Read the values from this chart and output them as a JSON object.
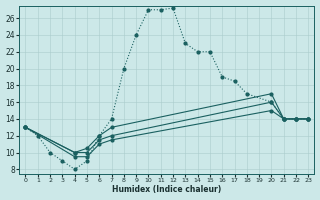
{
  "xlabel": "Humidex (Indice chaleur)",
  "bg_color": "#cce8e8",
  "line_color": "#1a6060",
  "xlim": [
    -0.5,
    23.5
  ],
  "ylim": [
    7.5,
    27.5
  ],
  "xticks": [
    0,
    1,
    2,
    3,
    4,
    5,
    6,
    7,
    8,
    9,
    10,
    11,
    12,
    13,
    14,
    15,
    16,
    17,
    18,
    19,
    20,
    21,
    22,
    23
  ],
  "yticks": [
    8,
    10,
    12,
    14,
    16,
    18,
    20,
    22,
    24,
    26
  ],
  "curve1_x": [
    0,
    1,
    2,
    3,
    4,
    5,
    6,
    7,
    8,
    9,
    10,
    11,
    12,
    13,
    14,
    15,
    16,
    17,
    18,
    20,
    21,
    22,
    23
  ],
  "curve1_y": [
    13,
    12,
    10,
    9,
    8,
    9,
    12,
    14,
    20,
    24,
    27,
    27,
    27.2,
    23,
    22,
    22,
    19,
    18.5,
    17,
    16,
    14,
    14,
    14
  ],
  "curve2_x": [
    0,
    4,
    5,
    6,
    7,
    20,
    21,
    22,
    23
  ],
  "curve2_y": [
    13,
    10,
    10.5,
    12,
    13,
    17,
    14,
    14,
    14
  ],
  "curve3_x": [
    0,
    4,
    5,
    6,
    7,
    20,
    21,
    22,
    23
  ],
  "curve3_y": [
    13,
    10,
    10,
    11.5,
    12,
    16,
    14,
    14,
    14
  ],
  "curve4_x": [
    0,
    4,
    5,
    6,
    7,
    20,
    21,
    22,
    23
  ],
  "curve4_y": [
    13,
    9.5,
    9.5,
    11,
    11.5,
    15,
    14,
    14,
    14
  ]
}
